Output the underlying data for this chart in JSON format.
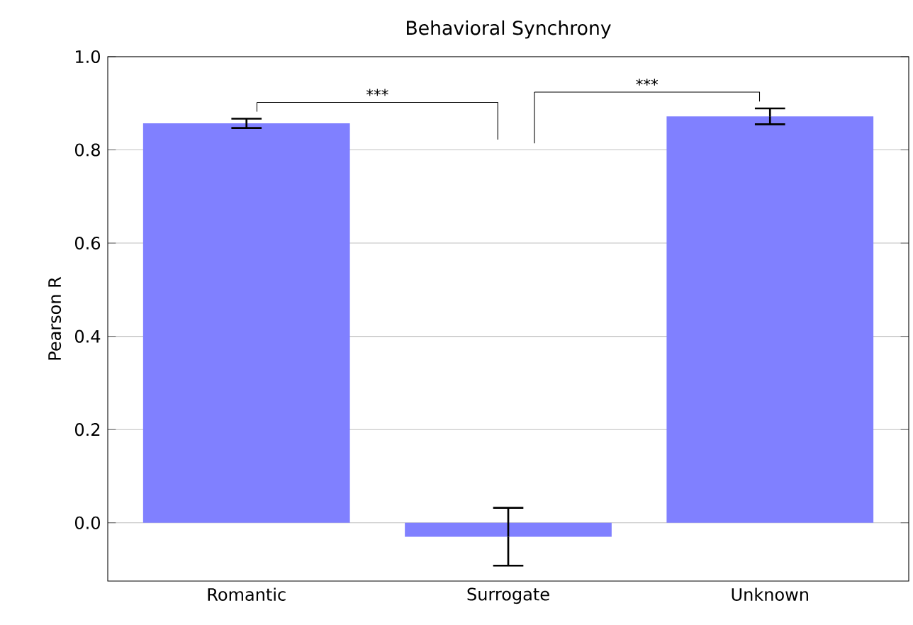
{
  "chart_data": {
    "type": "bar",
    "title": "Behavioral Synchrony",
    "ylabel": "Pearson R",
    "categories": [
      "Romantic",
      "Surrogate",
      "Unknown"
    ],
    "values": [
      0.857,
      -0.03,
      0.872
    ],
    "errors": [
      0.01,
      0.062,
      0.017
    ],
    "color": "#8080ff",
    "ylim": [
      -0.125,
      1.0
    ],
    "yticks": [
      {
        "value": 0,
        "label": "0.0"
      },
      {
        "value": 0.2,
        "label": "0.2"
      },
      {
        "value": 0.4,
        "label": "0.4"
      },
      {
        "value": 0.6,
        "label": "0.6"
      },
      {
        "value": 0.8,
        "label": "0.8"
      },
      {
        "value": 1.0,
        "label": "1.0"
      }
    ],
    "grid": "y",
    "annotations": [
      "***",
      "***"
    ]
  }
}
